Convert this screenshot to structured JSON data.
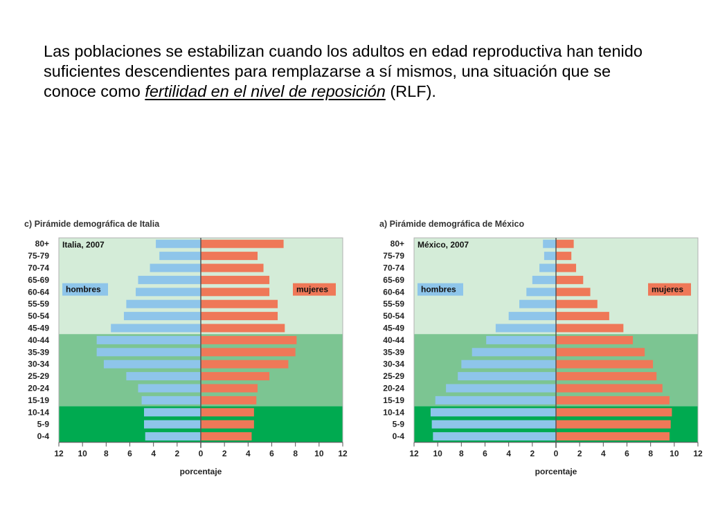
{
  "intro": {
    "part1": "Las poblaciones se estabilizan cuando los adultos en edad reproductiva han tenido suficientes descendientes para remplazarse a sí mismos, una situación que se conoce como ",
    "term": "fertilidad en el nivel de reposición",
    "part2": " (RLF)."
  },
  "colors": {
    "male": "#8ec5ea",
    "female": "#ef7858",
    "zone_top": "#d4ecd8",
    "zone_mid": "#7cc592",
    "zone_bottom": "#00aa50"
  },
  "chart_data": [
    {
      "type": "bar",
      "title": "c) Pirámide demográfica de Italia",
      "inner_label": "Italia, 2007",
      "xlabel": "porcentaje",
      "xlim": [
        -12,
        12
      ],
      "x_ticks": [
        "12",
        "10",
        "8",
        "6",
        "4",
        "2",
        "0",
        "2",
        "4",
        "6",
        "8",
        "10",
        "12"
      ],
      "legend": [
        "hombres",
        "mujeres"
      ],
      "categories": [
        "80+",
        "75-79",
        "70-74",
        "65-69",
        "60-64",
        "55-59",
        "50-54",
        "45-49",
        "40-44",
        "35-39",
        "30-34",
        "25-29",
        "20-24",
        "15-19",
        "10-14",
        "5-9",
        "0-4"
      ],
      "series": [
        {
          "name": "hombres",
          "values": [
            3.8,
            3.5,
            4.3,
            5.3,
            5.5,
            6.3,
            6.5,
            7.6,
            8.8,
            8.8,
            8.2,
            6.3,
            5.3,
            5.0,
            4.8,
            4.8,
            4.7
          ]
        },
        {
          "name": "mujeres",
          "values": [
            7.0,
            4.8,
            5.3,
            5.8,
            5.8,
            6.5,
            6.5,
            7.1,
            8.1,
            8.0,
            7.4,
            5.8,
            4.8,
            4.7,
            4.5,
            4.5,
            4.3
          ]
        }
      ]
    },
    {
      "type": "bar",
      "title": "a) Pirámide demográfica de México",
      "inner_label": "México, 2007",
      "xlabel": "porcentaje",
      "xlim": [
        -12,
        12
      ],
      "x_ticks": [
        "12",
        "10",
        "8",
        "6",
        "4",
        "2",
        "0",
        "2",
        "4",
        "6",
        "8",
        "10",
        "12"
      ],
      "legend": [
        "hombres",
        "mujeres"
      ],
      "categories": [
        "80+",
        "75-79",
        "70-74",
        "65-69",
        "60-64",
        "55-59",
        "50-54",
        "45-49",
        "40-44",
        "35-39",
        "30-34",
        "25-29",
        "20-24",
        "15-19",
        "10-14",
        "5-9",
        "0-4"
      ],
      "series": [
        {
          "name": "hombres",
          "values": [
            1.1,
            1.0,
            1.4,
            2.0,
            2.5,
            3.1,
            4.0,
            5.1,
            5.9,
            7.1,
            8.0,
            8.3,
            9.3,
            10.2,
            10.6,
            10.5,
            10.4
          ]
        },
        {
          "name": "mujeres",
          "values": [
            1.5,
            1.3,
            1.7,
            2.3,
            2.9,
            3.5,
            4.5,
            5.7,
            6.5,
            7.5,
            8.2,
            8.5,
            9.0,
            9.6,
            9.8,
            9.7,
            9.6
          ]
        }
      ]
    }
  ]
}
